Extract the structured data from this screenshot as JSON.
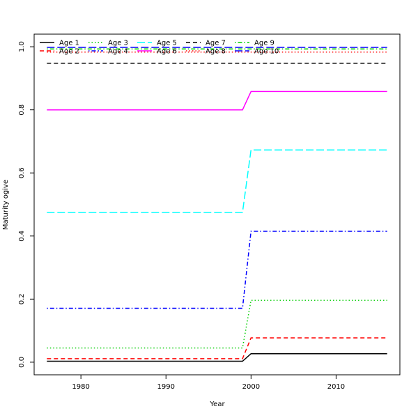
{
  "chart_data": {
    "type": "line",
    "title": "",
    "xlabel": "Year",
    "ylabel": "Maturity ogive",
    "xlim": [
      1974.5,
      2017.5
    ],
    "ylim": [
      -0.04,
      1.04
    ],
    "xticks": [
      1980,
      1990,
      2000,
      2010
    ],
    "yticks": [
      0.0,
      0.2,
      0.4,
      0.6,
      0.8,
      1.0
    ],
    "ytick_labels": [
      "0.0",
      "0.2",
      "0.4",
      "0.6",
      "0.8",
      "1.0"
    ],
    "grid": false,
    "legend_position": "top-left",
    "x": [
      1976,
      1999,
      2000,
      2016
    ],
    "series": [
      {
        "name": "Age 1",
        "color": "#000000",
        "dash": "solid",
        "values": [
          0.003,
          0.003,
          0.027,
          0.027
        ]
      },
      {
        "name": "Age 2",
        "color": "#ff0000",
        "dash": "dashed",
        "values": [
          0.011,
          0.011,
          0.077,
          0.077
        ]
      },
      {
        "name": "Age 3",
        "color": "#00cd00",
        "dash": "dotted",
        "values": [
          0.045,
          0.045,
          0.196,
          0.196
        ]
      },
      {
        "name": "Age 4",
        "color": "#0000ff",
        "dash": "dotdash",
        "values": [
          0.171,
          0.171,
          0.415,
          0.415
        ]
      },
      {
        "name": "Age 5",
        "color": "#00ffff",
        "dash": "longdash",
        "values": [
          0.475,
          0.475,
          0.673,
          0.673
        ]
      },
      {
        "name": "Age 6",
        "color": "#ff00ff",
        "dash": "solid",
        "values": [
          0.8,
          0.8,
          0.858,
          0.858
        ]
      },
      {
        "name": "Age 7",
        "color": "#000000",
        "dash": "dashed",
        "values": [
          0.948,
          0.948,
          0.948,
          0.948
        ]
      },
      {
        "name": "Age 8",
        "color": "#ff0000",
        "dash": "dotted",
        "values": [
          0.983,
          0.983,
          0.983,
          0.983
        ]
      },
      {
        "name": "Age 9",
        "color": "#00cd00",
        "dash": "dotdash",
        "values": [
          0.993,
          0.993,
          0.993,
          0.993
        ]
      },
      {
        "name": "Age 10",
        "color": "#0000ff",
        "dash": "longdash",
        "values": [
          0.998,
          0.998,
          0.998,
          0.998
        ]
      }
    ]
  }
}
